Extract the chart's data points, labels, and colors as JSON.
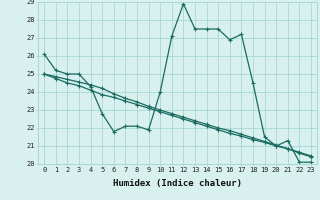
{
  "title": "",
  "xlabel": "Humidex (Indice chaleur)",
  "ylabel": "",
  "bg_color": "#d8f0ee",
  "line_color": "#1a6b60",
  "grid_color": "#a8d8d4",
  "x_values": [
    0,
    1,
    2,
    3,
    4,
    5,
    6,
    7,
    8,
    9,
    10,
    11,
    12,
    13,
    14,
    15,
    16,
    17,
    18,
    19,
    20,
    21,
    22,
    23
  ],
  "series1": [
    26.1,
    25.2,
    25.0,
    25.0,
    24.3,
    22.8,
    21.8,
    22.1,
    22.1,
    21.9,
    24.0,
    27.1,
    28.9,
    27.5,
    27.5,
    27.5,
    26.9,
    27.2,
    24.5,
    21.5,
    21.0,
    21.3,
    20.1,
    20.1
  ],
  "series2": [
    25.0,
    24.75,
    24.5,
    24.35,
    24.1,
    23.85,
    23.7,
    23.5,
    23.3,
    23.1,
    22.9,
    22.7,
    22.5,
    22.3,
    22.1,
    21.9,
    21.7,
    21.55,
    21.35,
    21.2,
    21.0,
    20.85,
    20.6,
    20.4
  ],
  "series3": [
    25.0,
    24.85,
    24.7,
    24.55,
    24.4,
    24.2,
    23.9,
    23.65,
    23.45,
    23.2,
    23.0,
    22.8,
    22.6,
    22.4,
    22.2,
    22.0,
    21.85,
    21.65,
    21.45,
    21.25,
    21.05,
    20.85,
    20.65,
    20.45
  ],
  "ylim": [
    20,
    29
  ],
  "xlim": [
    -0.5,
    23.5
  ],
  "yticks": [
    20,
    21,
    22,
    23,
    24,
    25,
    26,
    27,
    28,
    29
  ],
  "xticks": [
    0,
    1,
    2,
    3,
    4,
    5,
    6,
    7,
    8,
    9,
    10,
    11,
    12,
    13,
    14,
    15,
    16,
    17,
    18,
    19,
    20,
    21,
    22,
    23
  ],
  "xtick_labels": [
    "0",
    "1",
    "2",
    "3",
    "4",
    "5",
    "6",
    "7",
    "8",
    "9",
    "10",
    "11",
    "12",
    "13",
    "14",
    "15",
    "16",
    "17",
    "18",
    "19",
    "20",
    "21",
    "22",
    "23"
  ],
  "markersize": 3,
  "linewidth": 0.9
}
